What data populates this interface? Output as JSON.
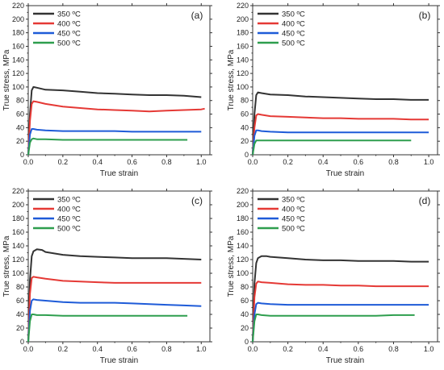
{
  "chart_data": [
    {
      "type": "line",
      "panel_label": "(a)",
      "xlabel": "True strain",
      "ylabel": "True stress,  MPa",
      "xlim": [
        0,
        1.05
      ],
      "ylim": [
        0,
        220
      ],
      "x_ticks": [
        "0.0",
        "0.2",
        "0.4",
        "0.6",
        "0.8",
        "1.0"
      ],
      "y_ticks": [
        "0",
        "20",
        "40",
        "60",
        "80",
        "100",
        "120",
        "140",
        "160",
        "180",
        "200",
        "220"
      ],
      "legend_position": "top-left",
      "series": [
        {
          "name": "350 ºC",
          "color": "#333333",
          "x": [
            0,
            0.01,
            0.02,
            0.03,
            0.05,
            0.1,
            0.2,
            0.3,
            0.4,
            0.5,
            0.6,
            0.7,
            0.8,
            0.9,
            1.0
          ],
          "y": [
            0,
            60,
            95,
            100,
            99,
            96,
            95,
            93,
            91,
            90,
            89,
            88,
            88,
            87,
            85
          ]
        },
        {
          "name": "400  ºC",
          "color": "#e53935",
          "x": [
            0,
            0.01,
            0.02,
            0.03,
            0.05,
            0.1,
            0.2,
            0.3,
            0.4,
            0.5,
            0.6,
            0.7,
            0.8,
            0.9,
            1.0,
            1.02
          ],
          "y": [
            0,
            50,
            75,
            79,
            78,
            75,
            71,
            69,
            67,
            66,
            65,
            64,
            65,
            66,
            67,
            68
          ]
        },
        {
          "name": "450 ºC",
          "color": "#1e5bd8",
          "x": [
            0,
            0.01,
            0.02,
            0.03,
            0.05,
            0.1,
            0.2,
            0.3,
            0.4,
            0.5,
            0.6,
            0.7,
            0.8,
            0.9,
            1.0
          ],
          "y": [
            0,
            30,
            38,
            38,
            37,
            36,
            35,
            35,
            35,
            35,
            34,
            34,
            34,
            34,
            34
          ]
        },
        {
          "name": "500 ºC",
          "color": "#2e9e4e",
          "x": [
            0,
            0.01,
            0.02,
            0.03,
            0.05,
            0.1,
            0.2,
            0.3,
            0.4,
            0.5,
            0.6,
            0.7,
            0.8,
            0.9,
            0.92
          ],
          "y": [
            0,
            18,
            23,
            24,
            23,
            23,
            22,
            22,
            22,
            22,
            22,
            22,
            22,
            22,
            22
          ]
        }
      ]
    },
    {
      "type": "line",
      "panel_label": "(b)",
      "xlabel": "True strain",
      "ylabel": "True stress,  MPa",
      "xlim": [
        0,
        1.05
      ],
      "ylim": [
        0,
        220
      ],
      "x_ticks": [
        "0.0",
        "0.2",
        "0.4",
        "0.6",
        "0.8",
        "1.0"
      ],
      "y_ticks": [
        "0",
        "20",
        "40",
        "60",
        "80",
        "100",
        "120",
        "140",
        "160",
        "180",
        "200",
        "220"
      ],
      "legend_position": "top-left",
      "series": [
        {
          "name": "350 ºC",
          "color": "#333333",
          "x": [
            0,
            0.01,
            0.02,
            0.03,
            0.05,
            0.1,
            0.2,
            0.3,
            0.4,
            0.5,
            0.6,
            0.7,
            0.8,
            0.9,
            1.0
          ],
          "y": [
            0,
            60,
            88,
            92,
            91,
            89,
            88,
            86,
            85,
            84,
            83,
            82,
            82,
            81,
            81
          ]
        },
        {
          "name": "400  ºC",
          "color": "#e53935",
          "x": [
            0,
            0.01,
            0.02,
            0.03,
            0.05,
            0.1,
            0.2,
            0.3,
            0.4,
            0.5,
            0.6,
            0.7,
            0.8,
            0.9,
            1.0
          ],
          "y": [
            0,
            40,
            58,
            60,
            59,
            57,
            56,
            55,
            54,
            54,
            53,
            53,
            53,
            52,
            52
          ]
        },
        {
          "name": "450 ºC",
          "color": "#1e5bd8",
          "x": [
            0,
            0.01,
            0.02,
            0.03,
            0.05,
            0.1,
            0.2,
            0.3,
            0.4,
            0.5,
            0.6,
            0.7,
            0.8,
            0.9,
            1.0
          ],
          "y": [
            0,
            28,
            36,
            36,
            35,
            34,
            33,
            33,
            33,
            33,
            33,
            33,
            33,
            33,
            33
          ]
        },
        {
          "name": "500 ºC",
          "color": "#2e9e4e",
          "x": [
            0,
            0.01,
            0.02,
            0.03,
            0.05,
            0.1,
            0.2,
            0.3,
            0.4,
            0.5,
            0.6,
            0.7,
            0.8,
            0.9
          ],
          "y": [
            0,
            16,
            21,
            21,
            21,
            21,
            21,
            21,
            21,
            21,
            21,
            21,
            21,
            21
          ]
        }
      ]
    },
    {
      "type": "line",
      "panel_label": "(c)",
      "xlabel": "True strain",
      "ylabel": "True stress,  MPa",
      "xlim": [
        0,
        1.05
      ],
      "ylim": [
        0,
        220
      ],
      "x_ticks": [
        "0.0",
        "0.2",
        "0.4",
        "0.6",
        "0.8",
        "1.0"
      ],
      "y_ticks": [
        "0",
        "20",
        "40",
        "60",
        "80",
        "100",
        "120",
        "140",
        "160",
        "180",
        "200",
        "220"
      ],
      "legend_position": "top-left",
      "series": [
        {
          "name": "350 ºC",
          "color": "#333333",
          "x": [
            0,
            0.01,
            0.02,
            0.03,
            0.05,
            0.08,
            0.1,
            0.2,
            0.3,
            0.4,
            0.5,
            0.6,
            0.7,
            0.8,
            0.9,
            1.0
          ],
          "y": [
            0,
            90,
            125,
            132,
            135,
            134,
            131,
            127,
            125,
            124,
            123,
            122,
            122,
            122,
            121,
            120
          ]
        },
        {
          "name": "400  ºC",
          "color": "#e53935",
          "x": [
            0,
            0.01,
            0.02,
            0.03,
            0.05,
            0.1,
            0.2,
            0.3,
            0.4,
            0.5,
            0.6,
            0.7,
            0.8,
            0.9,
            1.0
          ],
          "y": [
            0,
            70,
            93,
            95,
            94,
            92,
            89,
            88,
            87,
            86,
            86,
            86,
            86,
            86,
            86
          ]
        },
        {
          "name": "450 ºC",
          "color": "#1e5bd8",
          "x": [
            0,
            0.01,
            0.02,
            0.03,
            0.05,
            0.1,
            0.2,
            0.3,
            0.4,
            0.5,
            0.6,
            0.7,
            0.8,
            0.9,
            1.0
          ],
          "y": [
            0,
            45,
            60,
            62,
            61,
            60,
            58,
            57,
            57,
            57,
            56,
            55,
            54,
            53,
            52
          ]
        },
        {
          "name": "500 ºC",
          "color": "#2e9e4e",
          "x": [
            0,
            0.01,
            0.02,
            0.03,
            0.05,
            0.1,
            0.2,
            0.3,
            0.4,
            0.5,
            0.6,
            0.7,
            0.8,
            0.9,
            0.92
          ],
          "y": [
            0,
            30,
            40,
            40,
            39,
            39,
            38,
            38,
            38,
            38,
            38,
            38,
            38,
            38,
            38
          ]
        }
      ]
    },
    {
      "type": "line",
      "panel_label": "(d)",
      "xlabel": "True strain",
      "ylabel": "True stress,  MPa",
      "xlim": [
        0,
        1.05
      ],
      "ylim": [
        0,
        220
      ],
      "x_ticks": [
        "0.0",
        "0.2",
        "0.4",
        "0.6",
        "0.8",
        "1.0"
      ],
      "y_ticks": [
        "0",
        "20",
        "40",
        "60",
        "80",
        "100",
        "120",
        "140",
        "160",
        "180",
        "200",
        "220"
      ],
      "legend_position": "top-left",
      "series": [
        {
          "name": "350 ºC",
          "color": "#333333",
          "x": [
            0,
            0.01,
            0.02,
            0.03,
            0.05,
            0.08,
            0.1,
            0.2,
            0.3,
            0.4,
            0.5,
            0.6,
            0.7,
            0.8,
            0.9,
            1.0
          ],
          "y": [
            0,
            85,
            115,
            122,
            125,
            125,
            124,
            122,
            120,
            119,
            119,
            118,
            118,
            118,
            117,
            117
          ]
        },
        {
          "name": "400  ºC",
          "color": "#e53935",
          "x": [
            0,
            0.01,
            0.02,
            0.03,
            0.05,
            0.1,
            0.2,
            0.3,
            0.4,
            0.5,
            0.6,
            0.7,
            0.8,
            0.9,
            1.0
          ],
          "y": [
            0,
            65,
            85,
            88,
            87,
            86,
            84,
            83,
            83,
            82,
            82,
            81,
            81,
            81,
            81
          ]
        },
        {
          "name": "450 ºC",
          "color": "#1e5bd8",
          "x": [
            0,
            0.01,
            0.02,
            0.03,
            0.05,
            0.1,
            0.2,
            0.3,
            0.4,
            0.5,
            0.6,
            0.7,
            0.8,
            0.9,
            1.0
          ],
          "y": [
            0,
            40,
            55,
            57,
            56,
            55,
            54,
            54,
            54,
            54,
            54,
            54,
            54,
            54,
            54
          ]
        },
        {
          "name": "500 ºC",
          "color": "#2e9e4e",
          "x": [
            0,
            0.01,
            0.02,
            0.03,
            0.05,
            0.1,
            0.2,
            0.3,
            0.4,
            0.5,
            0.6,
            0.7,
            0.8,
            0.9,
            0.92
          ],
          "y": [
            0,
            30,
            40,
            40,
            39,
            38,
            38,
            38,
            38,
            38,
            38,
            38,
            39,
            39,
            39
          ]
        }
      ]
    }
  ]
}
